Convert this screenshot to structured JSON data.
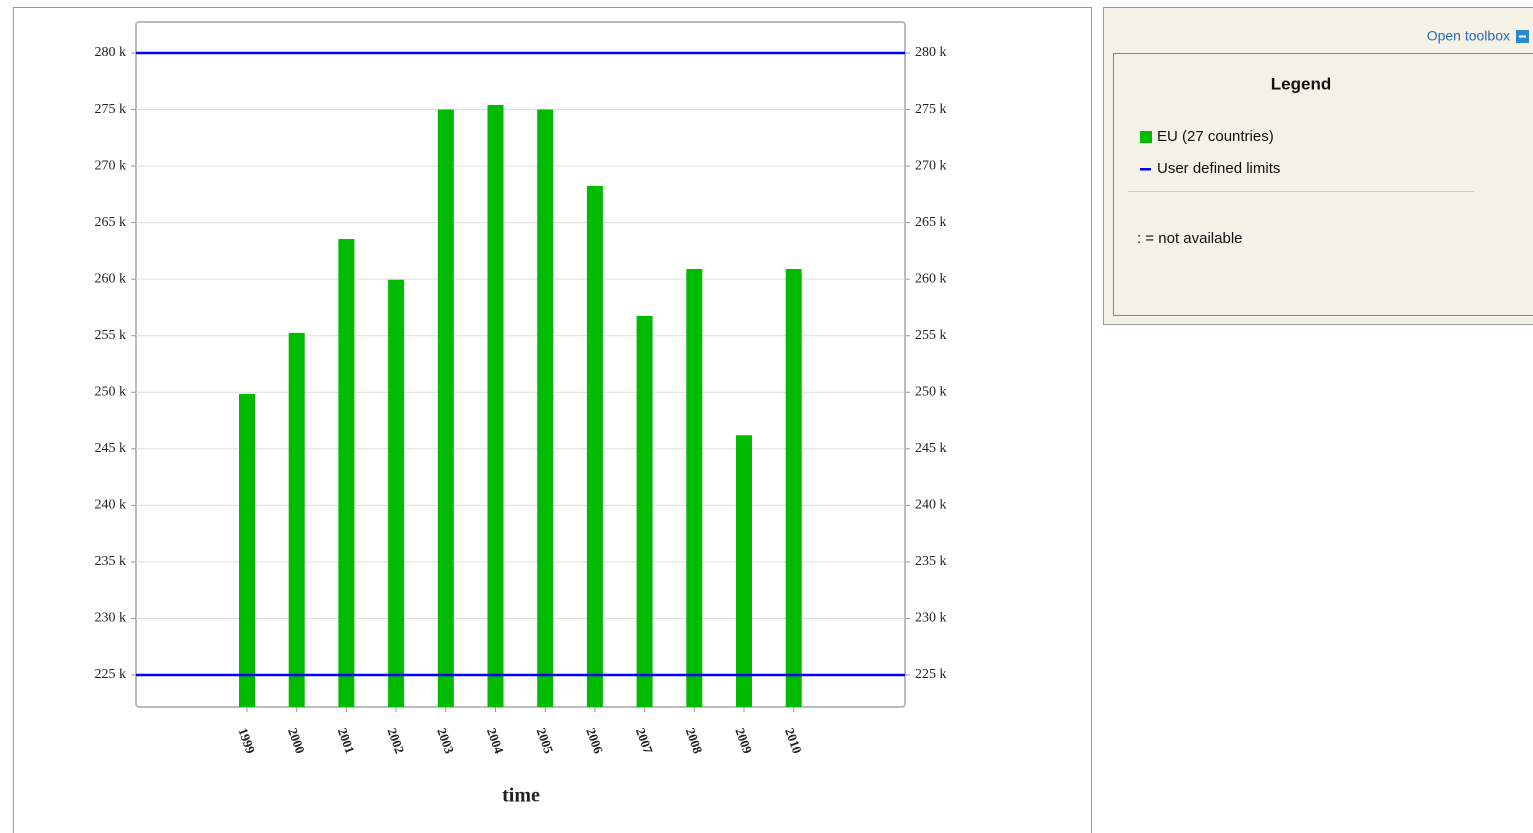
{
  "chart_data": {
    "type": "bar",
    "x_label": "time",
    "categories": [
      "1999",
      "2000",
      "2001",
      "2002",
      "2003",
      "2004",
      "2005",
      "2006",
      "2007",
      "2008",
      "2009",
      "2010"
    ],
    "series": [
      {
        "name": "EU (27 countries)",
        "color": "#00bb00",
        "values": [
          249850,
          255250,
          263550,
          259950,
          275000,
          275400,
          275000,
          268250,
          256750,
          260900,
          246200,
          260900
        ]
      }
    ],
    "limits": {
      "name": "User defined limits",
      "color": "#0000ff",
      "values": [
        225000,
        280000
      ]
    },
    "ylim": [
      222170,
      282740
    ],
    "yticks": [
      {
        "value": 225000,
        "label": "225 k"
      },
      {
        "value": 230000,
        "label": "230 k"
      },
      {
        "value": 235000,
        "label": "235 k"
      },
      {
        "value": 240000,
        "label": "240 k"
      },
      {
        "value": 245000,
        "label": "245 k"
      },
      {
        "value": 250000,
        "label": "250 k"
      },
      {
        "value": 255000,
        "label": "255 k"
      },
      {
        "value": 260000,
        "label": "260 k"
      },
      {
        "value": 265000,
        "label": "265 k"
      },
      {
        "value": 270000,
        "label": "270 k"
      },
      {
        "value": 275000,
        "label": "275 k"
      },
      {
        "value": 280000,
        "label": "280 k"
      }
    ],
    "grid": true
  },
  "panel": {
    "toolbox": "Open toolbox",
    "legend_title": "Legend",
    "note": ": = not available"
  }
}
